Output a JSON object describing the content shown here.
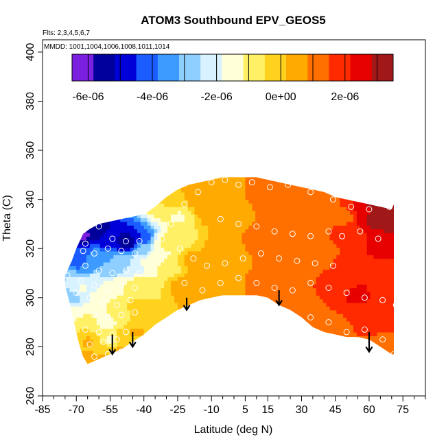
{
  "chart_data": {
    "type": "heatmap",
    "title": "ATOM3 Southbound EPV_GEOS5",
    "flights_note": "Flts: 2,3,4,5,6,7",
    "dates_note": "MMDD: 1001,1004,1006,1008,1011,1014",
    "xlabel": "Latitude (deg N)",
    "ylabel": "Theta (C)",
    "xlim": [
      -85,
      85
    ],
    "ylim": [
      260,
      405
    ],
    "x_ticks": [
      -85,
      -70,
      -55,
      -40,
      -25,
      -10,
      5,
      15,
      30,
      45,
      60,
      75
    ],
    "x_tick_labels": [
      "-85",
      "-70",
      "-55",
      "-40",
      "-25",
      "-10",
      "5",
      "15",
      "30",
      "45",
      "60",
      "75"
    ],
    "x_minor_step": 5,
    "y_ticks": [
      260,
      280,
      300,
      320,
      340,
      360,
      380,
      400
    ],
    "y_tick_labels": [
      "260",
      "280",
      "300",
      "320",
      "340",
      "360",
      "380",
      "400"
    ],
    "colorbar": {
      "range": [
        -6.5e-06,
        3.5e-06
      ],
      "colors": [
        "#7b1fe0",
        "#00009a",
        "#0000d8",
        "#1a5cff",
        "#3d9bff",
        "#8ecfff",
        "#d8f3ff",
        "#ffffd8",
        "#fff066",
        "#ffd21f",
        "#ffaa00",
        "#ff7000",
        "#ff2a00",
        "#e60000",
        "#a01818"
      ],
      "boundaries": [
        -6e-06,
        -5e-06,
        -4e-06,
        -3e-06,
        -2e-06,
        -1e-06,
        0,
        1e-06,
        2e-06,
        3e-06
      ],
      "tick_values": [
        -6e-06,
        -4e-06,
        -2e-06,
        0,
        2e-06
      ],
      "tick_labels": [
        "-6e-06",
        "-4e-06",
        "-2e-06",
        "0e+00",
        "2e-06"
      ]
    },
    "field_boundary": {
      "upper": [
        [
          -75,
          309
        ],
        [
          -72,
          315
        ],
        [
          -70,
          320
        ],
        [
          -67,
          326
        ],
        [
          -64,
          328
        ],
        [
          -60,
          330
        ],
        [
          -55,
          331
        ],
        [
          -50,
          332
        ],
        [
          -45,
          333
        ],
        [
          -40,
          334
        ],
        [
          -35,
          337
        ],
        [
          -30,
          341
        ],
        [
          -25,
          344
        ],
        [
          -20,
          346
        ],
        [
          -15,
          347
        ],
        [
          -10,
          348
        ],
        [
          -5,
          349
        ],
        [
          0,
          349
        ],
        [
          5,
          349
        ],
        [
          10,
          349
        ],
        [
          15,
          348
        ],
        [
          20,
          347
        ],
        [
          25,
          346
        ],
        [
          30,
          345
        ],
        [
          35,
          344
        ],
        [
          40,
          343
        ],
        [
          45,
          341
        ],
        [
          50,
          340
        ],
        [
          55,
          339
        ],
        [
          60,
          338
        ],
        [
          65,
          337
        ],
        [
          70,
          336
        ],
        [
          71,
          338
        ]
      ],
      "lower": [
        [
          71,
          277
        ],
        [
          70,
          277
        ],
        [
          65,
          280
        ],
        [
          60,
          283
        ],
        [
          55,
          284
        ],
        [
          50,
          284
        ],
        [
          45,
          285
        ],
        [
          40,
          286
        ],
        [
          35,
          288
        ],
        [
          30,
          292
        ],
        [
          25,
          295
        ],
        [
          20,
          297
        ],
        [
          15,
          300
        ],
        [
          10,
          301
        ],
        [
          5,
          301
        ],
        [
          0,
          301
        ],
        [
          -5,
          301
        ],
        [
          -10,
          300
        ],
        [
          -15,
          299
        ],
        [
          -20,
          297
        ],
        [
          -25,
          295
        ],
        [
          -30,
          292
        ],
        [
          -35,
          289
        ],
        [
          -40,
          285
        ],
        [
          -45,
          282
        ],
        [
          -50,
          279
        ],
        [
          -55,
          277
        ],
        [
          -60,
          275
        ],
        [
          -65,
          273
        ],
        [
          -67,
          276
        ],
        [
          -69,
          282
        ],
        [
          -71,
          290
        ],
        [
          -73,
          298
        ],
        [
          -75,
          305
        ]
      ]
    },
    "field_samples": [
      {
        "lat": -68,
        "theta": 327,
        "value": -6.2e-06
      },
      {
        "lat": -62,
        "theta": 328,
        "value": -5.5e-06
      },
      {
        "lat": -55,
        "theta": 324,
        "value": -5e-06
      },
      {
        "lat": -47,
        "theta": 323,
        "value": -5.8e-06
      },
      {
        "lat": -42,
        "theta": 324,
        "value": -4.5e-06
      },
      {
        "lat": -40,
        "theta": 320,
        "value": -3e-06
      },
      {
        "lat": -70,
        "theta": 316,
        "value": -4.5e-06
      },
      {
        "lat": -65,
        "theta": 314,
        "value": -3.8e-06
      },
      {
        "lat": -60,
        "theta": 316,
        "value": -3.5e-06
      },
      {
        "lat": -55,
        "theta": 312,
        "value": -3e-06
      },
      {
        "lat": -50,
        "theta": 314,
        "value": -2.8e-06
      },
      {
        "lat": -45,
        "theta": 312,
        "value": -2.3e-06
      },
      {
        "lat": -40,
        "theta": 314,
        "value": -1.8e-06
      },
      {
        "lat": -35,
        "theta": 318,
        "value": -1.5e-06
      },
      {
        "lat": -30,
        "theta": 322,
        "value": -1e-06
      },
      {
        "lat": -28,
        "theta": 312,
        "value": -6e-07
      },
      {
        "lat": -74,
        "theta": 308,
        "value": -2.5e-06
      },
      {
        "lat": -72,
        "theta": 300,
        "value": -2.8e-06
      },
      {
        "lat": -67,
        "theta": 304,
        "value": -1.8e-06
      },
      {
        "lat": -62,
        "theta": 306,
        "value": -2.2e-06
      },
      {
        "lat": -57,
        "theta": 303,
        "value": -1.3e-06
      },
      {
        "lat": -52,
        "theta": 305,
        "value": -1.5e-06
      },
      {
        "lat": -47,
        "theta": 304,
        "value": -1.1e-06
      },
      {
        "lat": -42,
        "theta": 306,
        "value": -8e-07
      },
      {
        "lat": -70,
        "theta": 294,
        "value": -1.5e-06
      },
      {
        "lat": -66,
        "theta": 290,
        "value": -5e-07
      },
      {
        "lat": -60,
        "theta": 293,
        "value": -1.2e-06
      },
      {
        "lat": -56,
        "theta": 291,
        "value": -1.8e-06
      },
      {
        "lat": -52,
        "theta": 293,
        "value": -7e-07
      },
      {
        "lat": -47,
        "theta": 296,
        "value": -5e-07
      },
      {
        "lat": -42,
        "theta": 296,
        "value": -2e-07
      },
      {
        "lat": -64,
        "theta": 282,
        "value": 2e-07
      },
      {
        "lat": -59,
        "theta": 280,
        "value": -4e-07
      },
      {
        "lat": -55,
        "theta": 283,
        "value": -1.2e-06
      },
      {
        "lat": -50,
        "theta": 284,
        "value": -3e-07
      },
      {
        "lat": -44,
        "theta": 286,
        "value": 2e-07
      },
      {
        "lat": -64,
        "theta": 275,
        "value": 4e-07
      },
      {
        "lat": -58,
        "theta": 276,
        "value": 2e-07
      },
      {
        "lat": -50,
        "theta": 278,
        "value": 3e-07
      },
      {
        "lat": -30,
        "theta": 338,
        "value": -5e-07
      },
      {
        "lat": -25,
        "theta": 333,
        "value": -1.2e-06
      },
      {
        "lat": -22,
        "theta": 325,
        "value": -6e-07
      },
      {
        "lat": -25,
        "theta": 342,
        "value": 1e-07
      },
      {
        "lat": -20,
        "theta": 344,
        "value": 4e-07
      },
      {
        "lat": -15,
        "theta": 340,
        "value": 5e-07
      },
      {
        "lat": -10,
        "theta": 335,
        "value": 6e-07
      },
      {
        "lat": -18,
        "theta": 315,
        "value": 4e-07
      },
      {
        "lat": -22,
        "theta": 305,
        "value": 5e-07
      },
      {
        "lat": -15,
        "theta": 300,
        "value": 6e-07
      },
      {
        "lat": -10,
        "theta": 308,
        "value": 7e-07
      },
      {
        "lat": -5,
        "theta": 320,
        "value": 8e-07
      },
      {
        "lat": 0,
        "theta": 345,
        "value": 8e-07
      },
      {
        "lat": 0,
        "theta": 330,
        "value": 8e-07
      },
      {
        "lat": 0,
        "theta": 305,
        "value": 8e-07
      },
      {
        "lat": 10,
        "theta": 345,
        "value": 9e-07
      },
      {
        "lat": 10,
        "theta": 325,
        "value": 9e-07
      },
      {
        "lat": 10,
        "theta": 305,
        "value": 9e-07
      },
      {
        "lat": 20,
        "theta": 340,
        "value": 1e-06
      },
      {
        "lat": 20,
        "theta": 320,
        "value": 1e-06
      },
      {
        "lat": 20,
        "theta": 303,
        "value": 1.1e-06
      },
      {
        "lat": 30,
        "theta": 338,
        "value": 1e-06
      },
      {
        "lat": 30,
        "theta": 318,
        "value": 1.1e-06
      },
      {
        "lat": 30,
        "theta": 295,
        "value": 1.3e-06
      },
      {
        "lat": 40,
        "theta": 335,
        "value": 1.1e-06
      },
      {
        "lat": 40,
        "theta": 318,
        "value": 1.3e-06
      },
      {
        "lat": 40,
        "theta": 298,
        "value": 1.5e-06
      },
      {
        "lat": 40,
        "theta": 288,
        "value": 1.2e-06
      },
      {
        "lat": 50,
        "theta": 333,
        "value": 1.4e-06
      },
      {
        "lat": 50,
        "theta": 315,
        "value": 1.6e-06
      },
      {
        "lat": 50,
        "theta": 305,
        "value": 2e-06
      },
      {
        "lat": 50,
        "theta": 290,
        "value": 1.5e-06
      },
      {
        "lat": 55,
        "theta": 302,
        "value": 2.4e-06
      },
      {
        "lat": 55,
        "theta": 325,
        "value": 1.9e-06
      },
      {
        "lat": 58,
        "theta": 334,
        "value": 2.6e-06
      },
      {
        "lat": 62,
        "theta": 333,
        "value": 3.4e-06
      },
      {
        "lat": 66,
        "theta": 335,
        "value": 3.3e-06
      },
      {
        "lat": 68,
        "theta": 330,
        "value": 3e-06
      },
      {
        "lat": 64,
        "theta": 326,
        "value": 2.8e-06
      },
      {
        "lat": 68,
        "theta": 322,
        "value": 2.5e-06
      },
      {
        "lat": 68,
        "theta": 312,
        "value": 2.1e-06
      },
      {
        "lat": 65,
        "theta": 305,
        "value": 1.8e-06
      },
      {
        "lat": 62,
        "theta": 292,
        "value": 1.6e-06
      },
      {
        "lat": 68,
        "theta": 288,
        "value": 1.5e-06
      },
      {
        "lat": 68,
        "theta": 278,
        "value": 1.3e-06
      },
      {
        "lat": 60,
        "theta": 284,
        "value": 1.5e-06
      }
    ],
    "observations": [
      {
        "lat": -68,
        "theta": 327
      },
      {
        "lat": -66,
        "theta": 322
      },
      {
        "lat": -60,
        "theta": 329
      },
      {
        "lat": -54,
        "theta": 324
      },
      {
        "lat": -48,
        "theta": 323
      },
      {
        "lat": -42,
        "theta": 323
      },
      {
        "lat": -67,
        "theta": 319
      },
      {
        "lat": -62,
        "theta": 318
      },
      {
        "lat": -56,
        "theta": 320
      },
      {
        "lat": -50,
        "theta": 319
      },
      {
        "lat": -44,
        "theta": 318
      },
      {
        "lat": -66,
        "theta": 313
      },
      {
        "lat": -60,
        "theta": 311
      },
      {
        "lat": -54,
        "theta": 310
      },
      {
        "lat": -48,
        "theta": 311
      },
      {
        "lat": -42,
        "theta": 310
      },
      {
        "lat": -74,
        "theta": 309
      },
      {
        "lat": -68,
        "theta": 307
      },
      {
        "lat": -62,
        "theta": 305
      },
      {
        "lat": -56,
        "theta": 303
      },
      {
        "lat": -50,
        "theta": 305
      },
      {
        "lat": -44,
        "theta": 304
      },
      {
        "lat": -70,
        "theta": 302
      },
      {
        "lat": -64,
        "theta": 300
      },
      {
        "lat": -58,
        "theta": 298
      },
      {
        "lat": -52,
        "theta": 297
      },
      {
        "lat": -46,
        "theta": 299
      },
      {
        "lat": -68,
        "theta": 294
      },
      {
        "lat": -62,
        "theta": 293
      },
      {
        "lat": -56,
        "theta": 292
      },
      {
        "lat": -50,
        "theta": 293
      },
      {
        "lat": -44,
        "theta": 294
      },
      {
        "lat": -66,
        "theta": 287
      },
      {
        "lat": -60,
        "theta": 286
      },
      {
        "lat": -54,
        "theta": 285
      },
      {
        "lat": -48,
        "theta": 286
      },
      {
        "lat": -64,
        "theta": 281
      },
      {
        "lat": -58,
        "theta": 282
      },
      {
        "lat": -52,
        "theta": 283
      },
      {
        "lat": -62,
        "theta": 276
      },
      {
        "lat": -56,
        "theta": 277
      },
      {
        "lat": -50,
        "theta": 278
      },
      {
        "lat": -32,
        "theta": 324
      },
      {
        "lat": -28,
        "theta": 330
      },
      {
        "lat": -22,
        "theta": 338
      },
      {
        "lat": -16,
        "theta": 343
      },
      {
        "lat": -10,
        "theta": 347
      },
      {
        "lat": -4,
        "theta": 348
      },
      {
        "lat": 2,
        "theta": 346
      },
      {
        "lat": 8,
        "theta": 347
      },
      {
        "lat": 16,
        "theta": 345
      },
      {
        "lat": 24,
        "theta": 346
      },
      {
        "lat": 34,
        "theta": 343
      },
      {
        "lat": 44,
        "theta": 340
      },
      {
        "lat": 52,
        "theta": 337
      },
      {
        "lat": 60,
        "theta": 336
      },
      {
        "lat": 69,
        "theta": 337
      },
      {
        "lat": -24,
        "theta": 320
      },
      {
        "lat": -18,
        "theta": 316
      },
      {
        "lat": -12,
        "theta": 313
      },
      {
        "lat": -4,
        "theta": 314
      },
      {
        "lat": 4,
        "theta": 316
      },
      {
        "lat": 12,
        "theta": 318
      },
      {
        "lat": 20,
        "theta": 316
      },
      {
        "lat": 28,
        "theta": 315
      },
      {
        "lat": 36,
        "theta": 314
      },
      {
        "lat": 44,
        "theta": 313
      },
      {
        "lat": -22,
        "theta": 306
      },
      {
        "lat": -14,
        "theta": 303
      },
      {
        "lat": -6,
        "theta": 306
      },
      {
        "lat": 2,
        "theta": 308
      },
      {
        "lat": 10,
        "theta": 306
      },
      {
        "lat": 18,
        "theta": 304
      },
      {
        "lat": 26,
        "theta": 303
      },
      {
        "lat": 34,
        "theta": 306
      },
      {
        "lat": 42,
        "theta": 304
      },
      {
        "lat": 50,
        "theta": 302
      },
      {
        "lat": 58,
        "theta": 300
      },
      {
        "lat": 66,
        "theta": 299
      },
      {
        "lat": 72,
        "theta": 297
      },
      {
        "lat": -6,
        "theta": 332
      },
      {
        "lat": 2,
        "theta": 330
      },
      {
        "lat": 10,
        "theta": 329
      },
      {
        "lat": 18,
        "theta": 327
      },
      {
        "lat": 26,
        "theta": 326
      },
      {
        "lat": 34,
        "theta": 325
      },
      {
        "lat": 42,
        "theta": 327
      },
      {
        "lat": 48,
        "theta": 325
      },
      {
        "lat": 56,
        "theta": 327
      },
      {
        "lat": 64,
        "theta": 324
      },
      {
        "lat": 34,
        "theta": 292
      },
      {
        "lat": 42,
        "theta": 290
      },
      {
        "lat": 50,
        "theta": 286
      },
      {
        "lat": 58,
        "theta": 287
      },
      {
        "lat": 66,
        "theta": 283
      },
      {
        "lat": 71,
        "theta": 277
      }
    ],
    "annotations": [
      {
        "type": "arrow",
        "lat": -54,
        "theta_top": 285,
        "theta_tip": 277
      },
      {
        "type": "arrow",
        "lat": -45,
        "theta_top": 286,
        "theta_tip": 280
      },
      {
        "type": "arrow",
        "lat": -21,
        "theta_top": 300,
        "theta_tip": 295
      },
      {
        "type": "arrow",
        "lat": 20,
        "theta_top": 303,
        "theta_tip": 297
      },
      {
        "type": "arrow",
        "lat": 60,
        "theta_top": 286,
        "theta_tip": 278
      }
    ]
  },
  "colors": {
    "background": "#ffffff",
    "frame": "#000000",
    "marker": "#ffffff",
    "arrow": "#000000"
  }
}
